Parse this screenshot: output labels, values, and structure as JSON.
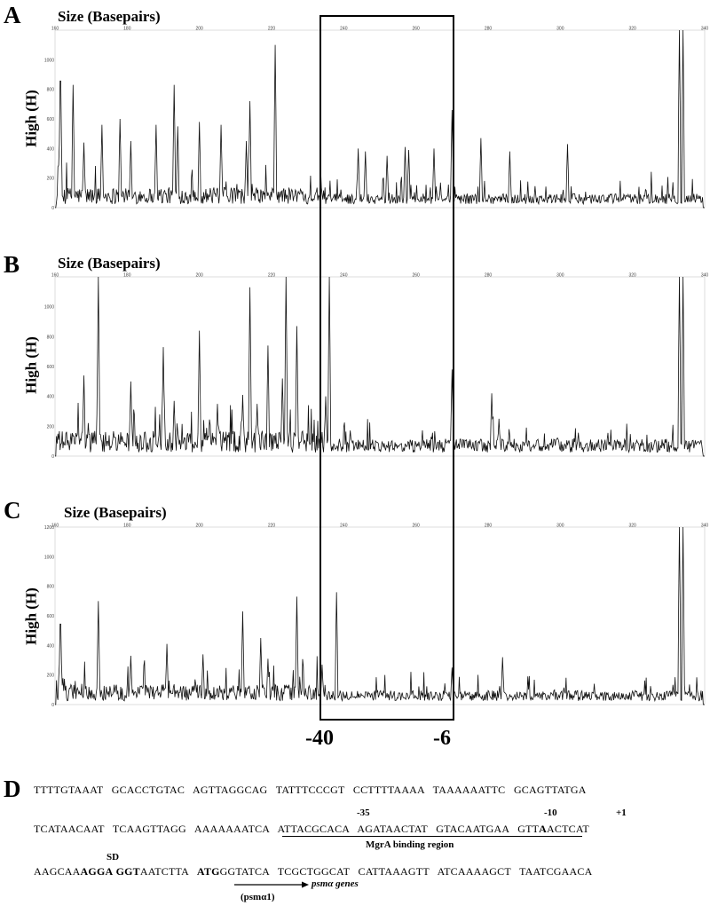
{
  "panels": [
    {
      "letter": "A",
      "title": "Size (Basepairs)",
      "ylabel": "High (H)"
    },
    {
      "letter": "B",
      "title": "Size (Basepairs)",
      "ylabel": "High (H)"
    },
    {
      "letter": "C",
      "title": "Size (Basepairs)",
      "ylabel": "High (H)"
    }
  ],
  "chart_data": [
    {
      "type": "line",
      "x_ticks": [
        160,
        180,
        200,
        220,
        240,
        260,
        280,
        300,
        320,
        340
      ],
      "y_ticks": [
        0,
        200,
        400,
        600,
        800,
        1000
      ],
      "xlim": [
        160,
        340
      ],
      "ylim": [
        0,
        1200
      ],
      "peaks": [
        {
          "x": 161.5,
          "y": 1070
        },
        {
          "x": 165,
          "y": 830
        },
        {
          "x": 168,
          "y": 440
        },
        {
          "x": 173,
          "y": 560
        },
        {
          "x": 178,
          "y": 600
        },
        {
          "x": 181,
          "y": 450
        },
        {
          "x": 188,
          "y": 560
        },
        {
          "x": 193,
          "y": 830
        },
        {
          "x": 194,
          "y": 550
        },
        {
          "x": 200,
          "y": 580
        },
        {
          "x": 206,
          "y": 560
        },
        {
          "x": 213,
          "y": 450
        },
        {
          "x": 214,
          "y": 720
        },
        {
          "x": 221,
          "y": 1100
        },
        {
          "x": 244,
          "y": 400
        },
        {
          "x": 246,
          "y": 380
        },
        {
          "x": 252,
          "y": 350
        },
        {
          "x": 257,
          "y": 410
        },
        {
          "x": 258,
          "y": 390
        },
        {
          "x": 265,
          "y": 400
        },
        {
          "x": 270,
          "y": 660
        },
        {
          "x": 278,
          "y": 470
        },
        {
          "x": 286,
          "y": 380
        },
        {
          "x": 302,
          "y": 430
        },
        {
          "x": 333,
          "y": 1200
        },
        {
          "x": 334,
          "y": 1200
        }
      ]
    },
    {
      "type": "line",
      "x_ticks": [
        160,
        180,
        200,
        220,
        240,
        260,
        280,
        300,
        320,
        340
      ],
      "y_ticks": [
        0,
        200,
        400,
        600,
        800,
        1000
      ],
      "xlim": [
        160,
        340
      ],
      "ylim": [
        0,
        1200
      ],
      "peaks": [
        {
          "x": 168,
          "y": 540
        },
        {
          "x": 172,
          "y": 1200
        },
        {
          "x": 181,
          "y": 500
        },
        {
          "x": 190,
          "y": 730
        },
        {
          "x": 193,
          "y": 370
        },
        {
          "x": 200,
          "y": 840
        },
        {
          "x": 205,
          "y": 350
        },
        {
          "x": 212,
          "y": 410
        },
        {
          "x": 214,
          "y": 1130
        },
        {
          "x": 216,
          "y": 350
        },
        {
          "x": 219,
          "y": 740
        },
        {
          "x": 223,
          "y": 520
        },
        {
          "x": 224,
          "y": 1200
        },
        {
          "x": 227,
          "y": 870
        },
        {
          "x": 235,
          "y": 400
        },
        {
          "x": 236,
          "y": 1200
        },
        {
          "x": 270,
          "y": 580
        },
        {
          "x": 281,
          "y": 420
        },
        {
          "x": 283,
          "y": 250
        },
        {
          "x": 333,
          "y": 1200
        },
        {
          "x": 334,
          "y": 1200
        }
      ]
    },
    {
      "type": "line",
      "x_ticks": [
        160,
        180,
        200,
        220,
        240,
        260,
        280,
        300,
        320,
        340
      ],
      "y_ticks": [
        0,
        200,
        400,
        600,
        800,
        1000,
        1200
      ],
      "xlim": [
        160,
        340
      ],
      "ylim": [
        0,
        1200
      ],
      "peaks": [
        {
          "x": 161.5,
          "y": 680
        },
        {
          "x": 172,
          "y": 700
        },
        {
          "x": 181,
          "y": 330
        },
        {
          "x": 191,
          "y": 410
        },
        {
          "x": 201,
          "y": 340
        },
        {
          "x": 212,
          "y": 630
        },
        {
          "x": 217,
          "y": 450
        },
        {
          "x": 219,
          "y": 310
        },
        {
          "x": 227,
          "y": 730
        },
        {
          "x": 234,
          "y": 270
        },
        {
          "x": 238,
          "y": 760
        },
        {
          "x": 270,
          "y": 250
        },
        {
          "x": 284,
          "y": 320
        },
        {
          "x": 333,
          "y": 1200
        },
        {
          "x": 334,
          "y": 1200
        }
      ]
    }
  ],
  "window_labels": {
    "left": "-40",
    "right": "-6"
  },
  "panelD": {
    "letter": "D",
    "line1": "TTTTGTAAAT   GCACCTGTAC   AGTTAGGCAG   TATTTCCCGT   CCTTTTAAAA   TAAAAAATTC   GCAGTTATGA",
    "line2_a": "TCATAACAAT   TCAAGTTAGG   AAAAAAATCA   ATTACGCACA   AGATAACTAT   GTACAATGAA   GTT",
    "line2_bold": "A",
    "line2_c": "ACTCAT",
    "line3_a": "AAGCAA",
    "line3_b1": "AGGA",
    "line3_c": " ",
    "line3_b2": "GGT",
    "line3_d": "AATCTTA   ",
    "line3_b3": "ATG",
    "line3_e": "GGTATCA   TCGCTGGCAT   CATTAAAGTT   ATCAAAAGCT   TAATCGAACA",
    "minus35": "-35",
    "minus10": "-10",
    "plus1": "+1",
    "sd": "SD",
    "mgra": "MgrA binding region",
    "psm_genes": "psmα genes",
    "psm_prefix": "",
    "psma1": "(psmα1)"
  }
}
